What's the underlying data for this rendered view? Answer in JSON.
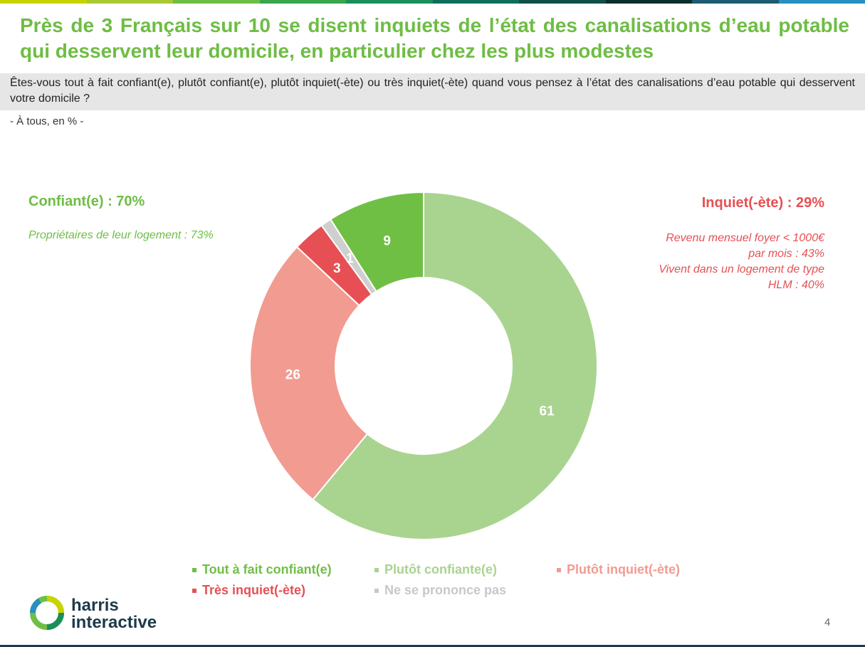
{
  "header": {
    "title": "Près de 3 Français sur 10 se disent inquiets de l’état des canalisations d’eau potable qui desservent leur domicile, en particulier chez les plus modestes",
    "question": "Êtes-vous tout à fait confiant(e), plutôt confiant(e), plutôt inquiet(-ète) ou très inquiet(-ète) quand vous pensez à l’état des canalisations d’eau potable qui desservent votre domicile ?",
    "base": "- À tous, en % -"
  },
  "callouts": {
    "left_label": "Confiant(e) : 70%",
    "left_note": "Propriétaires de leur logement : 73%",
    "right_label": "Inquiet(-ète) : 29%",
    "right_note_1": "Revenu mensuel foyer < 1000€",
    "right_note_2": "par mois : 43%",
    "right_note_3": "Vivent dans un logement de type",
    "right_note_4": "HLM : 40%"
  },
  "chart_data": {
    "type": "donut",
    "slices": [
      {
        "label": "Plutôt confiante(e)",
        "value": 61,
        "color": "#a9d490",
        "label_color": "#ffffff"
      },
      {
        "label": "Plutôt inquiet(-ète)",
        "value": 26,
        "color": "#f29b91",
        "label_color": "#ffffff"
      },
      {
        "label": "Très inquiet(-ète)",
        "value": 3,
        "color": "#e65054",
        "label_color": "#ffffff"
      },
      {
        "label": "Ne se prononce pas",
        "value": 1,
        "color": "#cfcfcf",
        "label_color": "#ffffff"
      },
      {
        "label": "Tout à fait confiant(e)",
        "value": 9,
        "color": "#70bf45",
        "label_color": "#ffffff"
      }
    ]
  },
  "legend": [
    {
      "label": "Tout à fait confiant(e)",
      "color": "#70bf45"
    },
    {
      "label": "Plutôt confiante(e)",
      "color": "#a9d490"
    },
    {
      "label": "Plutôt inquiet(-ète)",
      "color": "#f29b91"
    },
    {
      "label": "Très inquiet(-ète)",
      "color": "#e65054"
    },
    {
      "label": "Ne se prononce pas",
      "color": "#c8c8c8"
    }
  ],
  "footer": {
    "brand_line1": "harris",
    "brand_line2": "interactive",
    "page_number": "4"
  },
  "colors": {
    "accent_green": "#6ebd44",
    "accent_red": "#e65054",
    "topbar": [
      "#c8d400",
      "#a8c932",
      "#6ebd44",
      "#3aa64b",
      "#1a8f5a",
      "#0d6e5c",
      "#104e4a",
      "#0b2e2a",
      "#1d5b73",
      "#2a8fc1"
    ]
  }
}
